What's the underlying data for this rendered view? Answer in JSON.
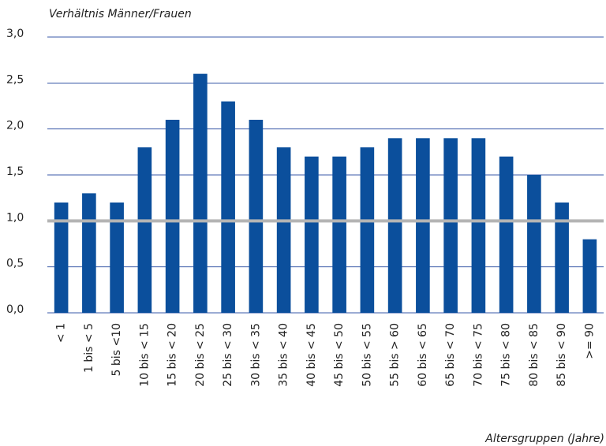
{
  "chart_data": {
    "type": "bar",
    "ylabel": "Verhältnis Männer/Frauen",
    "xlabel": "Altersgruppen (Jahre)",
    "categories": [
      "< 1",
      "1 bis < 5",
      "5 bis <10",
      "10 bis < 15",
      "15 bis < 20",
      "20 bis < 25",
      "25 bis < 30",
      "30 bis < 35",
      "35 bis < 40",
      "40 bis < 45",
      "45 bis < 50",
      "50 bis < 55",
      "55 bis > 60",
      "60 bis < 65",
      "65 bis < 70",
      "70 bis < 75",
      "75 bis < 80",
      "80 bis < 85",
      "85 bis < 90",
      ">= 90"
    ],
    "values": [
      1.2,
      1.3,
      1.2,
      1.8,
      2.1,
      2.6,
      2.3,
      2.1,
      1.8,
      1.7,
      1.7,
      1.8,
      1.9,
      1.9,
      1.9,
      1.9,
      1.7,
      1.5,
      1.2,
      0.8
    ],
    "color": "#0b4f9c",
    "ylim": [
      0,
      3
    ],
    "yticks": [
      {
        "value": 0,
        "label": "0,0"
      },
      {
        "value": 0.5,
        "label": "0,5"
      },
      {
        "value": 1,
        "label": "1,0"
      },
      {
        "value": 1.5,
        "label": "1,5"
      },
      {
        "value": 2,
        "label": "2,0"
      },
      {
        "value": 2.5,
        "label": "2,5"
      },
      {
        "value": 3,
        "label": "3,0"
      }
    ],
    "grid": true,
    "grid_color": "#3a5aa8",
    "reference_line": 1,
    "reference_color": "#b4b4b4"
  }
}
